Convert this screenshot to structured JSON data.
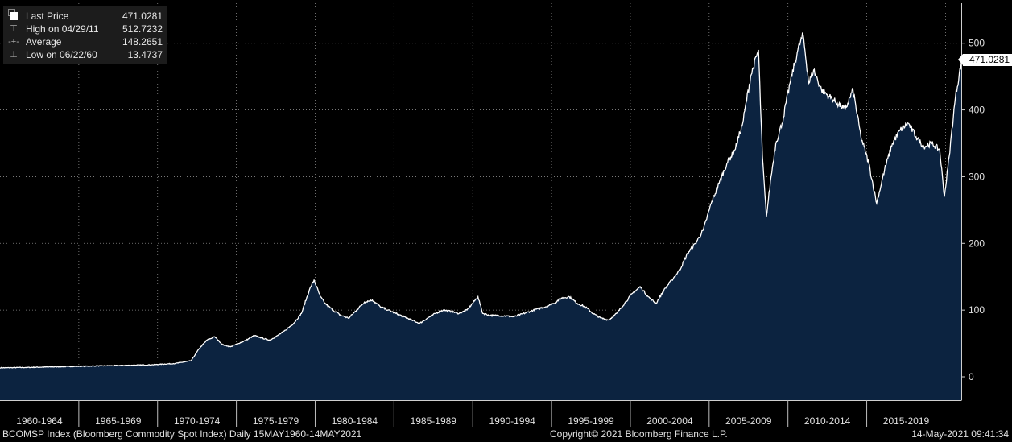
{
  "legend": {
    "rows": [
      {
        "label": "Last Price",
        "value": "471.0281",
        "symbol": "swatch"
      },
      {
        "label": "High on 04/29/11",
        "value": "512.7232",
        "symbol": "T"
      },
      {
        "label": "Average",
        "value": "148.2651",
        "symbol": "+"
      },
      {
        "label": "Low on 06/22/60",
        "value": "13.4737",
        "symbol": "⊥"
      }
    ]
  },
  "last_price_tag": "471.0281",
  "footer": {
    "left": "BCOMSP Index (Bloomberg Commodity Spot Index)  Daily 15MAY1960-14MAY2021",
    "center": "Copyright© 2021 Bloomberg Finance L.P.",
    "right": "14-May-2021 09:41:34"
  },
  "colors": {
    "background": "#000000",
    "area_fill": "#0c2340",
    "line": "#ffffff",
    "grid": "#8a8a8a"
  },
  "chart_data": {
    "type": "area",
    "title": "",
    "xlabel": "",
    "ylabel": "",
    "x_ticks": [
      "1960-1964",
      "1965-1969",
      "1970-1974",
      "1975-1979",
      "1980-1984",
      "1985-1989",
      "1990-1994",
      "1995-1999",
      "2000-2004",
      "2005-2009",
      "2010-2014",
      "2015-2019"
    ],
    "y_ticks": [
      0,
      100,
      200,
      300,
      400,
      500
    ],
    "ylim": [
      -35,
      560
    ],
    "xlim": [
      1960.37,
      2021.37
    ],
    "grid": true,
    "series": [
      {
        "x": [
          1960.37,
          1962,
          1964,
          1966,
          1968,
          1970,
          1971.5,
          1972.5,
          1973.0,
          1973.5,
          1974.0,
          1974.5,
          1975.0,
          1975.5,
          1976.0,
          1976.5,
          1977.0,
          1977.5,
          1978.0,
          1978.5,
          1979.0,
          1979.5,
          1980.0,
          1980.3,
          1980.7,
          1981.0,
          1981.5,
          1982.0,
          1982.5,
          1983.0,
          1983.5,
          1984.0,
          1984.5,
          1985.0,
          1985.5,
          1986.0,
          1986.5,
          1987.0,
          1987.5,
          1988.0,
          1988.5,
          1989.0,
          1989.5,
          1990.0,
          1990.7,
          1991.0,
          1991.5,
          1992.0,
          1993.0,
          1994.0,
          1994.5,
          1995.0,
          1995.5,
          1996.0,
          1996.5,
          1997.0,
          1997.5,
          1998.0,
          1998.5,
          1999.0,
          1999.5,
          2000.0,
          2000.5,
          2001.0,
          2001.5,
          2002.0,
          2002.5,
          2003.0,
          2003.5,
          2004.0,
          2004.5,
          2005.0,
          2005.5,
          2006.0,
          2006.5,
          2007.0,
          2007.5,
          2008.0,
          2008.5,
          2008.75,
          2009.0,
          2009.3,
          2009.6,
          2010.0,
          2010.5,
          2011.0,
          2011.33,
          2011.7,
          2012.0,
          2012.5,
          2013.0,
          2013.5,
          2014.0,
          2014.5,
          2015.0,
          2015.5,
          2016.0,
          2016.5,
          2017.0,
          2017.5,
          2018.0,
          2018.5,
          2019.0,
          2019.5,
          2020.0,
          2020.3,
          2020.6,
          2021.0,
          2021.37
        ],
        "values": [
          13.5,
          14,
          15,
          16,
          17,
          18,
          20,
          24,
          42,
          55,
          60,
          48,
          45,
          50,
          55,
          62,
          58,
          55,
          62,
          70,
          80,
          95,
          130,
          145,
          120,
          110,
          100,
          92,
          88,
          100,
          112,
          115,
          105,
          100,
          95,
          90,
          85,
          80,
          88,
          95,
          100,
          98,
          95,
          100,
          120,
          95,
          92,
          92,
          90,
          98,
          102,
          105,
          110,
          118,
          120,
          110,
          105,
          95,
          88,
          85,
          95,
          110,
          125,
          135,
          120,
          110,
          130,
          145,
          160,
          185,
          200,
          220,
          260,
          290,
          320,
          340,
          380,
          450,
          490,
          330,
          240,
          300,
          350,
          380,
          440,
          490,
          512.7,
          440,
          460,
          430,
          420,
          410,
          400,
          430,
          360,
          320,
          260,
          310,
          350,
          370,
          380,
          360,
          345,
          350,
          340,
          270,
          330,
          420,
          471.0
        ]
      }
    ]
  }
}
